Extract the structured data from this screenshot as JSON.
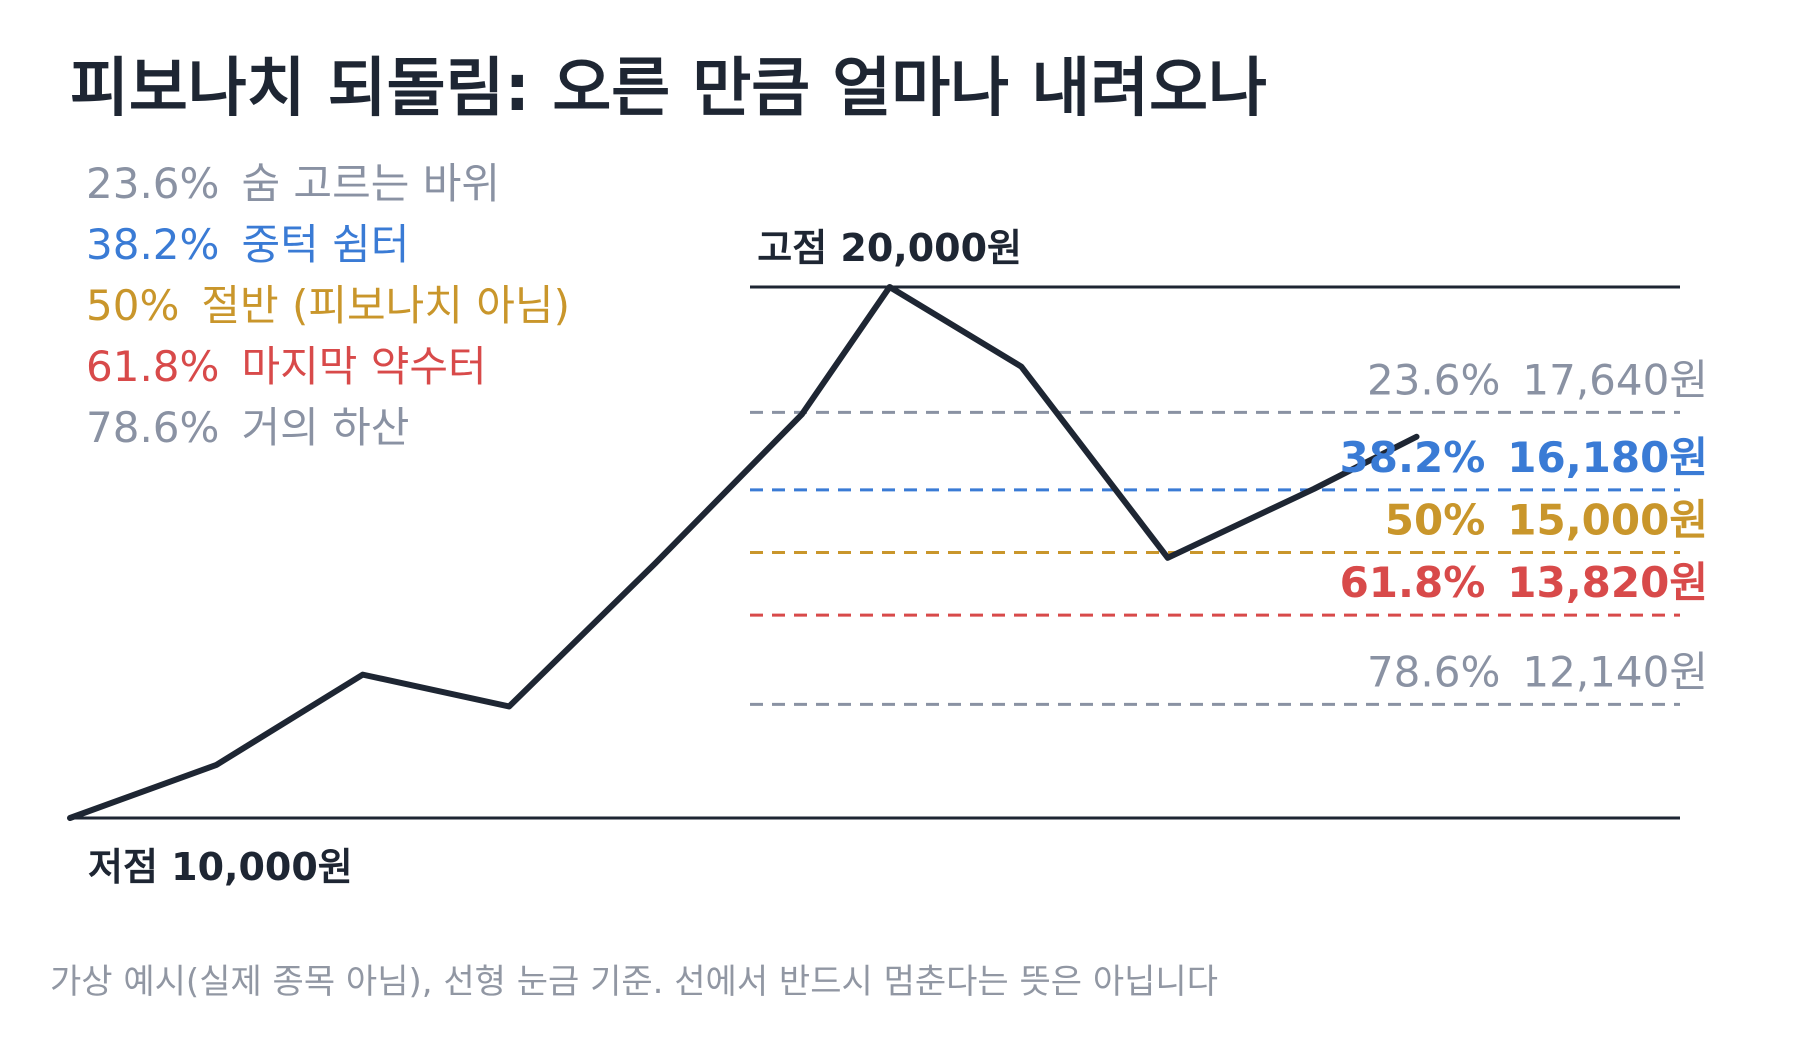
{
  "title": "피보나치 되돌림: 오른 만큼 얼마나 내려오나",
  "footnote": "가상 예시(실제 종목 아님), 선형 눈금 기준. 선에서 반드시 멈춘다는 뜻은 아닙니다",
  "colors": {
    "text_dark": "#1e2633",
    "gray": "#8a92a3",
    "blue": "#3a7bd5",
    "gold": "#c9962b",
    "red": "#d84a4a",
    "footnote": "#9197a3"
  },
  "legend": [
    {
      "pct": "23.6%",
      "desc": "숨 고르는 바위",
      "color": "#8a92a3"
    },
    {
      "pct": "38.2%",
      "desc": "중턱 쉼터",
      "color": "#3a7bd5"
    },
    {
      "pct": "50%",
      "desc": "절반 (피보나치 아님)",
      "color": "#c9962b"
    },
    {
      "pct": "61.8%",
      "desc": "마지막 약수터",
      "color": "#d84a4a"
    },
    {
      "pct": "78.6%",
      "desc": "거의 하산",
      "color": "#8a92a3"
    }
  ],
  "chart_data": {
    "type": "line",
    "title": "피보나치 되돌림: 오른 만큼 얼마나 내려오나",
    "high": {
      "label": "고점 20,000원",
      "value": 20000
    },
    "low": {
      "label": "저점 10,000원",
      "value": 10000
    },
    "y_range": [
      10000,
      20000
    ],
    "price_path": [
      {
        "x": 0,
        "y": 10000
      },
      {
        "x": 2,
        "y": 11000
      },
      {
        "x": 4,
        "y": 12700
      },
      {
        "x": 6,
        "y": 12100
      },
      {
        "x": 8,
        "y": 14800
      },
      {
        "x": 10,
        "y": 17600
      },
      {
        "x": 11.2,
        "y": 20000
      },
      {
        "x": 13,
        "y": 18500
      },
      {
        "x": 15,
        "y": 14900
      },
      {
        "x": 17,
        "y": 16200
      },
      {
        "x": 18.4,
        "y": 17180
      }
    ],
    "levels": [
      {
        "ratio": "23.6%",
        "value": 17640,
        "value_label": "17,640원",
        "color": "#8a92a3",
        "bold": false
      },
      {
        "ratio": "38.2%",
        "value": 16180,
        "value_label": "16,180원",
        "color": "#3a7bd5",
        "bold": true
      },
      {
        "ratio": "50%",
        "value": 15000,
        "value_label": "15,000원",
        "color": "#c9962b",
        "bold": true
      },
      {
        "ratio": "61.8%",
        "value": 13820,
        "value_label": "13,820원",
        "color": "#d84a4a",
        "bold": true
      },
      {
        "ratio": "78.6%",
        "value": 12140,
        "value_label": "12,140원",
        "color": "#8a92a3",
        "bold": false
      }
    ],
    "grid": false
  }
}
